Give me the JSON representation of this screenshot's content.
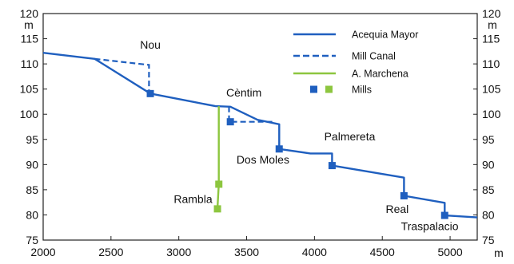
{
  "chart_data": {
    "type": "line",
    "title": "",
    "xlabel": "",
    "ylabel": "",
    "x_unit": "m",
    "y_unit_left": "m",
    "y_unit_right": "m",
    "xlim": [
      2000,
      5200
    ],
    "ylim": [
      75,
      120
    ],
    "xticks": [
      "2000",
      "2500",
      "3000",
      "3500",
      "4000",
      "4500",
      "5000"
    ],
    "yticks": [
      "75",
      "80",
      "85",
      "90",
      "95",
      "100",
      "105",
      "110",
      "115",
      "120"
    ],
    "grid": false,
    "legend_position": "top-right",
    "colors": {
      "blue": "#1f5fbf",
      "green": "#8dc63f",
      "frame": "#222222"
    },
    "series": [
      {
        "name": "Acequia Mayor",
        "style": "solid",
        "color": "#1f5fbf",
        "x": [
          2000,
          2380,
          2790,
          3270,
          3380,
          3580,
          3740,
          3740,
          3970,
          4130,
          4130,
          4660,
          4660,
          4960,
          4960,
          5200
        ],
        "y": [
          112.2,
          111.0,
          104.1,
          101.6,
          101.5,
          98.9,
          98.0,
          93.1,
          92.2,
          92.2,
          89.8,
          87.4,
          83.8,
          82.4,
          79.9,
          79.5
        ]
      },
      {
        "name": "Mill Canal",
        "style": "dashed",
        "color": "#1f5fbf",
        "segments": [
          {
            "x": [
              2380,
              2780,
              2780
            ],
            "y": [
              111.0,
              109.8,
              104.1
            ]
          },
          {
            "x": [
              3370,
              3370,
              3700
            ],
            "y": [
              101.5,
              98.5,
              98.5
            ]
          }
        ]
      },
      {
        "name": "A. Marchena",
        "style": "solid",
        "color": "#8dc63f",
        "x": [
          3295,
          3295,
          3285
        ],
        "y": [
          101.6,
          86.1,
          81.2
        ]
      },
      {
        "name": "Mills",
        "style": "markers",
        "points": [
          {
            "label": "Nou",
            "x": 2790,
            "y": 104.1,
            "color": "#1f5fbf"
          },
          {
            "label": "Cèntim",
            "x": 3380,
            "y": 98.5,
            "color": "#1f5fbf"
          },
          {
            "label": "Dos Moles",
            "x": 3740,
            "y": 93.1,
            "color": "#1f5fbf"
          },
          {
            "label": "Palmereta",
            "x": 4130,
            "y": 89.8,
            "color": "#1f5fbf"
          },
          {
            "label": "Real",
            "x": 4660,
            "y": 83.8,
            "color": "#1f5fbf"
          },
          {
            "label": "Traspalacio",
            "x": 4960,
            "y": 79.9,
            "color": "#1f5fbf"
          },
          {
            "label": "Rambla",
            "x": 3295,
            "y": 86.1,
            "color": "#8dc63f"
          },
          {
            "label": "Rambla",
            "x": 3285,
            "y": 81.2,
            "color": "#8dc63f"
          }
        ]
      }
    ],
    "annotations": [
      "Nou",
      "Cèntim",
      "Dos Moles",
      "Palmereta",
      "Real",
      "Traspalacio",
      "Rambla"
    ],
    "legend": [
      "Acequia Mayor",
      "Mill Canal",
      "A. Marchena",
      "Mills"
    ]
  }
}
